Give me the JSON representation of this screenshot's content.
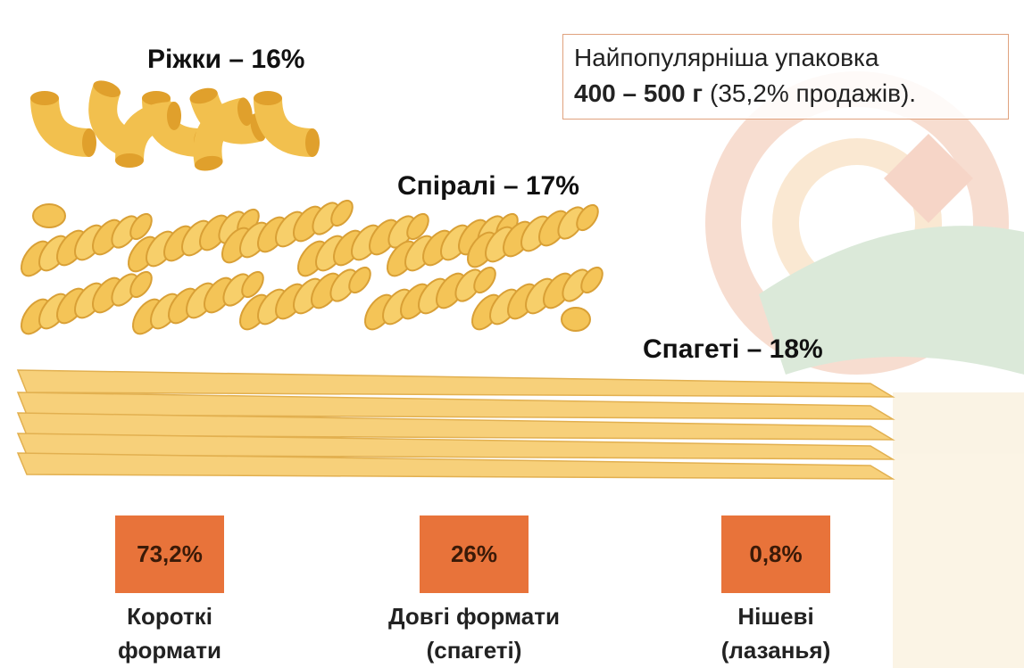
{
  "pasta_labels": [
    "Ріжки – 16%",
    "Спіралі – 17%",
    "Спагеті – 18%"
  ],
  "callout": {
    "line1": "Найпопулярніша упаковка",
    "bold": "400 – 500 г",
    "rest": "(35,2% продажів)."
  },
  "formats": [
    {
      "value": "73,2%",
      "label_lines": [
        "Короткі",
        "формати"
      ]
    },
    {
      "value": "26%",
      "label_lines": [
        "Довгі формати",
        "(спагеті)"
      ]
    },
    {
      "value": "0,8%",
      "label_lines": [
        "Нішеві",
        "(лазанья)"
      ]
    }
  ]
}
